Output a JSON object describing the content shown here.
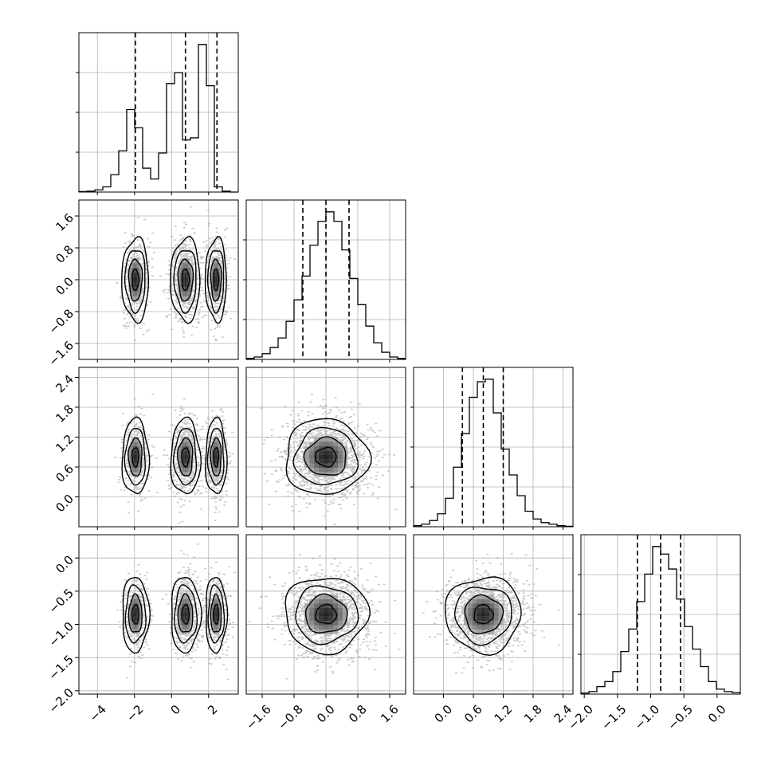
{
  "chart_data": {
    "type": "corner",
    "title": "",
    "parameters": [
      {
        "range": [
          -5.0,
          3.6
        ],
        "ticks": [
          -4,
          -2,
          0,
          2
        ],
        "tick_labels": [
          "−4",
          "−2",
          "0",
          "2"
        ],
        "quantiles": [
          -1.95,
          0.75,
          2.45
        ]
      },
      {
        "range": [
          -2.0,
          2.0
        ],
        "ticks": [
          -1.6,
          -0.8,
          0.0,
          0.8,
          1.6
        ],
        "tick_labels": [
          "−1.6",
          "−0.8",
          "0.0",
          "0.8",
          "1.6"
        ],
        "quantiles": [
          -0.58,
          0.0,
          0.58
        ]
      },
      {
        "range": [
          -0.6,
          2.6
        ],
        "ticks": [
          0.0,
          0.6,
          1.2,
          1.8,
          2.4
        ],
        "tick_labels": [
          "0.0",
          "0.6",
          "1.2",
          "1.8",
          "2.4"
        ],
        "quantiles": [
          0.38,
          0.8,
          1.2
        ]
      },
      {
        "range": [
          -2.05,
          0.35
        ],
        "ticks": [
          -2.0,
          -1.5,
          -1.0,
          -0.5,
          0.0
        ],
        "tick_labels": [
          "−2.0",
          "−1.5",
          "−1.0",
          "−0.5",
          "0.0"
        ],
        "quantiles": [
          -1.2,
          -0.85,
          -0.55
        ]
      }
    ],
    "histograms": [
      {
        "bins": [
          -5.0,
          -4.57,
          -4.14,
          -3.71,
          -3.28,
          -2.85,
          -2.42,
          -1.99,
          -1.56,
          -1.13,
          -0.7,
          -0.27,
          0.16,
          0.59,
          1.02,
          1.45,
          1.88,
          2.31,
          2.74,
          3.17,
          3.6
        ],
        "counts": [
          1,
          2,
          5,
          12,
          40,
          95,
          190,
          148,
          55,
          30,
          90,
          250,
          275,
          120,
          125,
          340,
          245,
          12,
          2,
          0
        ]
      },
      {
        "bins": [
          -2.0,
          -1.8,
          -1.6,
          -1.4,
          -1.2,
          -1.0,
          -0.8,
          -0.6,
          -0.4,
          -0.2,
          0.0,
          0.2,
          0.4,
          0.6,
          0.8,
          1.0,
          1.2,
          1.4,
          1.6,
          1.8,
          2.0
        ],
        "counts": [
          2,
          5,
          12,
          25,
          45,
          80,
          125,
          175,
          240,
          290,
          310,
          290,
          230,
          170,
          115,
          70,
          35,
          15,
          5,
          2
        ]
      },
      {
        "bins": [
          -0.6,
          -0.44,
          -0.28,
          -0.12,
          0.04,
          0.2,
          0.36,
          0.52,
          0.68,
          0.84,
          1.0,
          1.16,
          1.32,
          1.48,
          1.64,
          1.8,
          1.96,
          2.12,
          2.28,
          2.44,
          2.6
        ],
        "counts": [
          2,
          5,
          12,
          25,
          55,
          115,
          180,
          250,
          280,
          285,
          220,
          150,
          100,
          60,
          30,
          15,
          8,
          5,
          2,
          1
        ]
      },
      {
        "bins": [
          -2.05,
          -1.93,
          -1.81,
          -1.69,
          -1.57,
          -1.45,
          -1.33,
          -1.21,
          -1.09,
          -0.97,
          -0.85,
          -0.73,
          -0.61,
          -0.49,
          -0.37,
          -0.25,
          -0.13,
          -0.01,
          0.11,
          0.23,
          0.35
        ],
        "counts": [
          2,
          5,
          15,
          25,
          45,
          85,
          130,
          185,
          240,
          295,
          280,
          250,
          190,
          135,
          90,
          55,
          25,
          10,
          5,
          3
        ]
      }
    ],
    "modes": [
      {
        "param": 0,
        "center": -1.95,
        "sd": 0.38,
        "weight": 0.25
      },
      {
        "param": 0,
        "center": 0.75,
        "sd": 0.42,
        "weight": 0.45
      },
      {
        "param": 0,
        "center": 2.4,
        "sd": 0.3,
        "weight": 0.3
      }
    ],
    "marginal_2d": {
      "1": {
        "center": 0.0,
        "sd": 0.55
      },
      "2": {
        "center": 0.8,
        "sd": 0.4
      },
      "3": {
        "center": -0.85,
        "sd": 0.3
      }
    },
    "contour_levels": [
      0.5,
      1.0,
      1.5,
      2.0
    ],
    "quantile_probs": [
      0.16,
      0.5,
      0.84
    ],
    "grid": true,
    "colors": {
      "line": "#000000",
      "grid": "#b0b0b0",
      "points": "#9a9a9a"
    }
  }
}
